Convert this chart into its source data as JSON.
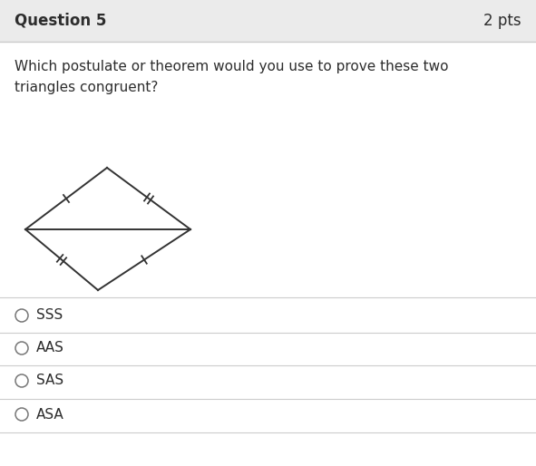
{
  "header_text": "Question 5",
  "pts_text": "2 pts",
  "question_text": "Which postulate or theorem would you use to prove these two\ntriangles congruent?",
  "options": [
    "SSS",
    "AAS",
    "SAS",
    "ASA"
  ],
  "bg_color": "#ffffff",
  "header_bg": "#ebebeb",
  "header_text_color": "#2d2d2d",
  "question_text_color": "#2d2d2d",
  "option_text_color": "#2d2d2d",
  "line_color": "#cccccc",
  "shape_color": "#333333",
  "circle_color": "#777777",
  "figwidth": 5.91,
  "figheight": 5.14,
  "dpi": 100
}
